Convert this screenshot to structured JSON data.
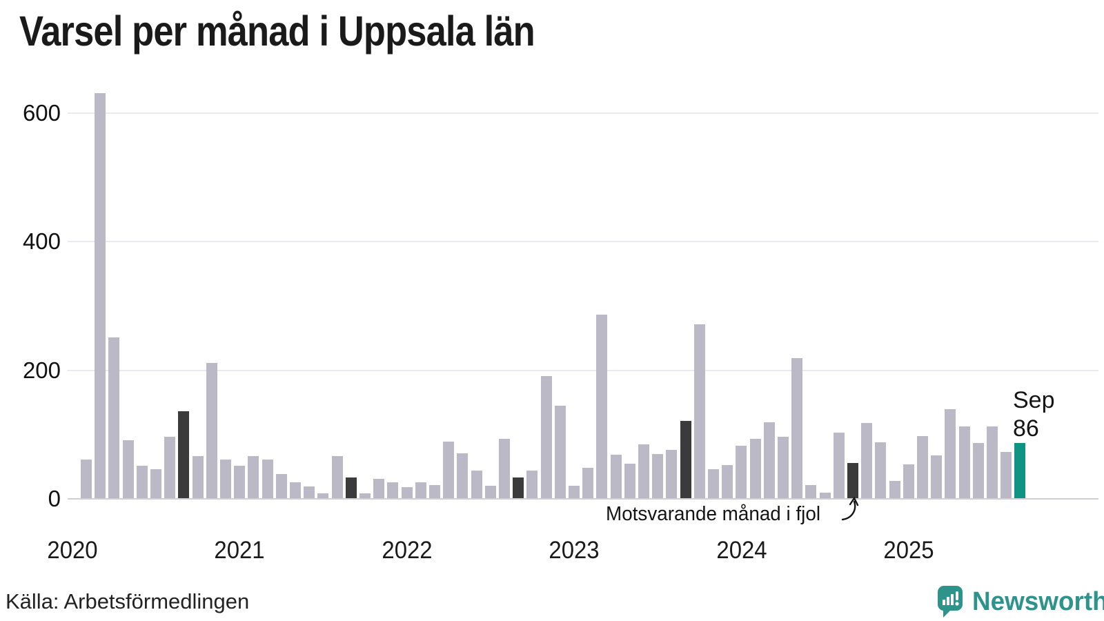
{
  "title": "Varsel per månad i Uppsala län",
  "y_axis": {
    "ticks": [
      0,
      200,
      400,
      600
    ]
  },
  "x_axis": {
    "years": [
      "2020",
      "2021",
      "2022",
      "2023",
      "2024",
      "2025"
    ]
  },
  "annotation": {
    "text": "Motsvarande månad i fjol"
  },
  "current_point": {
    "month_label": "Sep",
    "value_label": "86"
  },
  "source": {
    "label": "Källa: Arbetsförmedlingen"
  },
  "brand": {
    "name": "Newsworthy"
  },
  "colors": {
    "bar": "#bcb9c6",
    "bar_dark": "#3b3b3b",
    "bar_current": "#0e9481",
    "brand_teal": "#2d938b",
    "gridline": "#e9e9ef",
    "baseline": "#cfcfd5"
  },
  "chart_data": {
    "type": "bar",
    "title": "Varsel per månad i Uppsala län",
    "xlabel": "",
    "ylabel": "",
    "ylim": [
      0,
      650
    ],
    "gridlines": [
      0,
      200,
      400,
      600
    ],
    "legend": "none",
    "highlight_meaning": {
      "fjol": "Motsvarande månad i fjol (September of each year, dark)",
      "current": "Sep 2025, current month, teal, value 86"
    },
    "points": [
      {
        "m": "2020-02",
        "v": 60,
        "k": "normal"
      },
      {
        "m": "2020-03",
        "v": 630,
        "k": "normal"
      },
      {
        "m": "2020-04",
        "v": 250,
        "k": "normal"
      },
      {
        "m": "2020-05",
        "v": 90,
        "k": "normal"
      },
      {
        "m": "2020-06",
        "v": 50,
        "k": "normal"
      },
      {
        "m": "2020-07",
        "v": 45,
        "k": "normal"
      },
      {
        "m": "2020-08",
        "v": 95,
        "k": "normal"
      },
      {
        "m": "2020-09",
        "v": 135,
        "k": "fjol"
      },
      {
        "m": "2020-10",
        "v": 65,
        "k": "normal"
      },
      {
        "m": "2020-11",
        "v": 210,
        "k": "normal"
      },
      {
        "m": "2020-12",
        "v": 60,
        "k": "normal"
      },
      {
        "m": "2021-01",
        "v": 50,
        "k": "normal"
      },
      {
        "m": "2021-02",
        "v": 65,
        "k": "normal"
      },
      {
        "m": "2021-03",
        "v": 60,
        "k": "normal"
      },
      {
        "m": "2021-04",
        "v": 38,
        "k": "normal"
      },
      {
        "m": "2021-05",
        "v": 25,
        "k": "normal"
      },
      {
        "m": "2021-06",
        "v": 18,
        "k": "normal"
      },
      {
        "m": "2021-07",
        "v": 8,
        "k": "normal"
      },
      {
        "m": "2021-08",
        "v": 65,
        "k": "normal"
      },
      {
        "m": "2021-09",
        "v": 32,
        "k": "fjol"
      },
      {
        "m": "2021-10",
        "v": 8,
        "k": "normal"
      },
      {
        "m": "2021-11",
        "v": 30,
        "k": "normal"
      },
      {
        "m": "2021-12",
        "v": 25,
        "k": "normal"
      },
      {
        "m": "2022-01",
        "v": 17,
        "k": "normal"
      },
      {
        "m": "2022-02",
        "v": 25,
        "k": "normal"
      },
      {
        "m": "2022-03",
        "v": 20,
        "k": "normal"
      },
      {
        "m": "2022-04",
        "v": 88,
        "k": "normal"
      },
      {
        "m": "2022-05",
        "v": 70,
        "k": "normal"
      },
      {
        "m": "2022-06",
        "v": 43,
        "k": "normal"
      },
      {
        "m": "2022-07",
        "v": 19,
        "k": "normal"
      },
      {
        "m": "2022-08",
        "v": 92,
        "k": "normal"
      },
      {
        "m": "2022-09",
        "v": 32,
        "k": "fjol"
      },
      {
        "m": "2022-10",
        "v": 43,
        "k": "normal"
      },
      {
        "m": "2022-11",
        "v": 190,
        "k": "normal"
      },
      {
        "m": "2022-12",
        "v": 144,
        "k": "normal"
      },
      {
        "m": "2023-01",
        "v": 19,
        "k": "normal"
      },
      {
        "m": "2023-02",
        "v": 47,
        "k": "normal"
      },
      {
        "m": "2023-03",
        "v": 285,
        "k": "normal"
      },
      {
        "m": "2023-04",
        "v": 68,
        "k": "normal"
      },
      {
        "m": "2023-05",
        "v": 54,
        "k": "normal"
      },
      {
        "m": "2023-06",
        "v": 84,
        "k": "normal"
      },
      {
        "m": "2023-07",
        "v": 69,
        "k": "normal"
      },
      {
        "m": "2023-08",
        "v": 75,
        "k": "normal"
      },
      {
        "m": "2023-09",
        "v": 120,
        "k": "fjol"
      },
      {
        "m": "2023-10",
        "v": 270,
        "k": "normal"
      },
      {
        "m": "2023-11",
        "v": 45,
        "k": "normal"
      },
      {
        "m": "2023-12",
        "v": 52,
        "k": "normal"
      },
      {
        "m": "2024-01",
        "v": 82,
        "k": "normal"
      },
      {
        "m": "2024-02",
        "v": 92,
        "k": "normal"
      },
      {
        "m": "2024-03",
        "v": 118,
        "k": "normal"
      },
      {
        "m": "2024-04",
        "v": 96,
        "k": "normal"
      },
      {
        "m": "2024-05",
        "v": 218,
        "k": "normal"
      },
      {
        "m": "2024-06",
        "v": 20,
        "k": "normal"
      },
      {
        "m": "2024-07",
        "v": 9,
        "k": "normal"
      },
      {
        "m": "2024-08",
        "v": 102,
        "k": "normal"
      },
      {
        "m": "2024-09",
        "v": 55,
        "k": "fjol"
      },
      {
        "m": "2024-10",
        "v": 117,
        "k": "normal"
      },
      {
        "m": "2024-11",
        "v": 87,
        "k": "normal"
      },
      {
        "m": "2024-12",
        "v": 27,
        "k": "normal"
      },
      {
        "m": "2025-01",
        "v": 53,
        "k": "normal"
      },
      {
        "m": "2025-02",
        "v": 97,
        "k": "normal"
      },
      {
        "m": "2025-03",
        "v": 66,
        "k": "normal"
      },
      {
        "m": "2025-04",
        "v": 138,
        "k": "normal"
      },
      {
        "m": "2025-05",
        "v": 112,
        "k": "normal"
      },
      {
        "m": "2025-06",
        "v": 86,
        "k": "normal"
      },
      {
        "m": "2025-07",
        "v": 112,
        "k": "normal"
      },
      {
        "m": "2025-08",
        "v": 72,
        "k": "normal"
      },
      {
        "m": "2025-09",
        "v": 86,
        "k": "current"
      }
    ]
  }
}
